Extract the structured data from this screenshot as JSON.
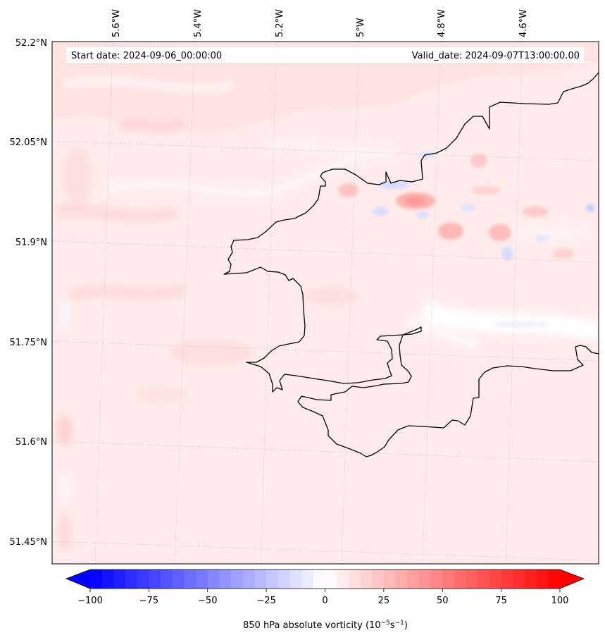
{
  "map": {
    "start_date": "Start date: 2024-09-06_00:00:00",
    "valid_date": "Valid_date: 2024-09-07T13:00:00.00",
    "lon_labels": [
      "5.6°W",
      "5.4°W",
      "5.2°W",
      "5°W",
      "4.8°W",
      "4.6°W"
    ],
    "lat_labels": [
      "52.2°N",
      "52.05°N",
      "51.9°N",
      "51.75°N",
      "51.6°N",
      "51.45°N"
    ],
    "field": "850 hPa absolute vorticity",
    "region": "coastline of south-west Wales (Pembrokeshire / Carmarthen Bay)"
  },
  "colorbar": {
    "label_main": "850 hPa absolute vorticity (10",
    "label_exp1": "−5",
    "label_mid": "s",
    "label_exp2": "−1",
    "label_end": ")",
    "ticks": [
      "−100",
      "−75",
      "−50",
      "−25",
      "0",
      "25",
      "50",
      "75",
      "100"
    ],
    "tick_values": [
      -100,
      -75,
      -50,
      -25,
      0,
      25,
      50,
      75,
      100
    ],
    "min": -100,
    "max": 100,
    "colormap": "bwr",
    "low_color": "#0000ff",
    "mid_color": "#ffffff",
    "high_color": "#ff0000"
  }
}
